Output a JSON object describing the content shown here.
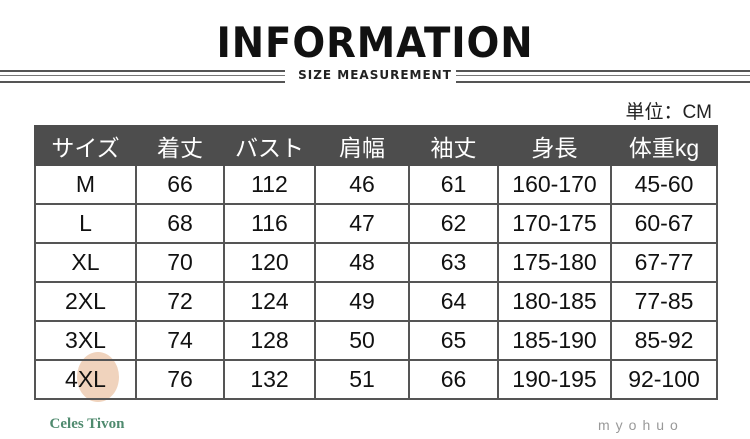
{
  "title": "INFORMATION",
  "subtitle": "SIZE MEASUREMENT",
  "unit": "単位：CM",
  "table": {
    "headers": [
      "サイズ",
      "着丈",
      "バスト",
      "肩幅",
      "袖丈",
      "身長",
      "体重kg"
    ],
    "rows": [
      [
        "M",
        "66",
        "112",
        "46",
        "61",
        "160-170",
        "45-60"
      ],
      [
        "L",
        "68",
        "116",
        "47",
        "62",
        "170-175",
        "60-67"
      ],
      [
        "XL",
        "70",
        "120",
        "48",
        "63",
        "175-180",
        "67-77"
      ],
      [
        "2XL",
        "72",
        "124",
        "49",
        "64",
        "180-185",
        "77-85"
      ],
      [
        "3XL",
        "74",
        "128",
        "50",
        "65",
        "185-190",
        "85-92"
      ],
      [
        "4XL",
        "76",
        "132",
        "51",
        "66",
        "190-195",
        "92-100"
      ]
    ]
  },
  "logo": {
    "text": "Celes Tivon",
    "color": "#4f8a6e",
    "accent": "#e2a77c"
  },
  "watermark": "myohuo",
  "colors": {
    "header_bg": "#4d4d4d",
    "border": "#555555"
  }
}
